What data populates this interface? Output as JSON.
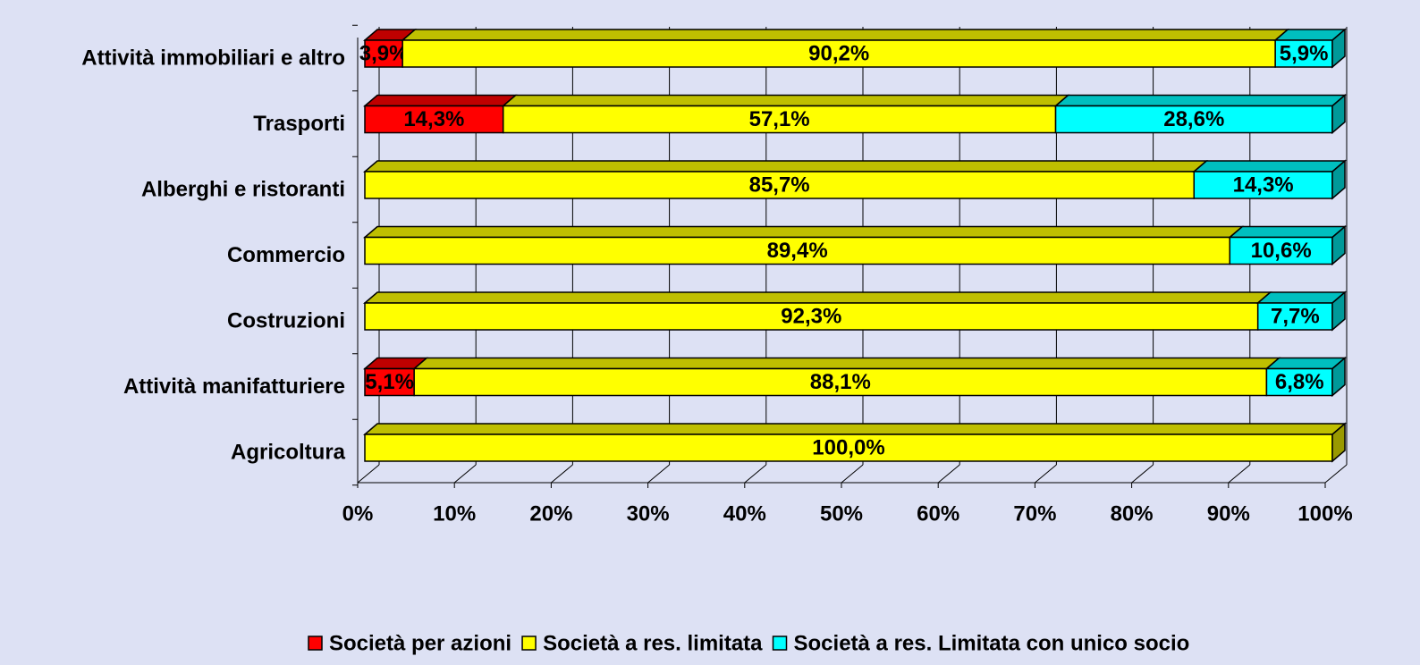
{
  "chart_data": {
    "type": "bar",
    "orientation": "horizontal",
    "stacked": true,
    "categories": [
      "Attività immobiliari e altro",
      "Trasporti",
      "Alberghi e ristoranti",
      "Commercio",
      "Costruzioni",
      "Attività manifatturiere",
      "Agricoltura"
    ],
    "series": [
      {
        "name": "Società per azioni",
        "color": "#ff0000",
        "values": [
          3.9,
          14.3,
          null,
          null,
          null,
          5.1,
          null
        ],
        "value_labels": [
          "3,9%",
          "14,3%",
          null,
          null,
          null,
          "5,1%",
          null
        ]
      },
      {
        "name": "Società a res. limitata",
        "color": "#ffff00",
        "values": [
          90.2,
          57.1,
          85.7,
          89.4,
          92.3,
          88.1,
          100
        ],
        "value_labels": [
          "90,2%",
          "57,1%",
          "85,7%",
          "89,4%",
          "92,3%",
          "88,1%",
          "100,0%"
        ]
      },
      {
        "name": "Società a res. Limitata con unico socio",
        "color": "#00ffff",
        "values": [
          5.9,
          28.6,
          14.3,
          10.6,
          7.7,
          6.8,
          null
        ],
        "value_labels": [
          "5,9%",
          "28,6%",
          "14,3%",
          "10,6%",
          "7,7%",
          "6,8%",
          null
        ]
      }
    ],
    "xlim": [
      0,
      100
    ],
    "xticks": [
      {
        "value": 0,
        "label": "0%"
      },
      {
        "value": 10,
        "label": "10%"
      },
      {
        "value": 20,
        "label": "20%"
      },
      {
        "value": 30,
        "label": "30%"
      },
      {
        "value": 40,
        "label": "40%"
      },
      {
        "value": 50,
        "label": "50%"
      },
      {
        "value": 60,
        "label": "60%"
      },
      {
        "value": 70,
        "label": "70%"
      },
      {
        "value": 80,
        "label": "80%"
      },
      {
        "value": 90,
        "label": "90%"
      },
      {
        "value": 100,
        "label": "100%"
      }
    ],
    "grid": true,
    "legend": "bottom"
  }
}
